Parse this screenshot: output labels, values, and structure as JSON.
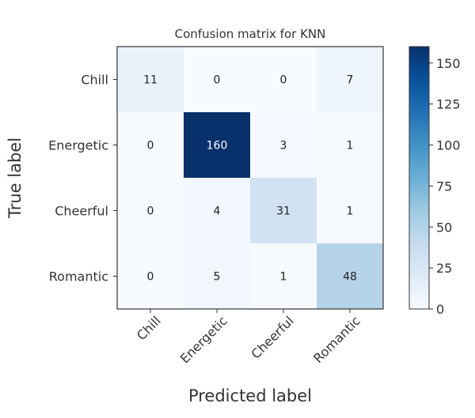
{
  "chart_data": {
    "type": "heatmap",
    "title": "Confusion matrix for KNN",
    "xlabel": "Predicted label",
    "ylabel": "True label",
    "x_categories": [
      "Chill",
      "Energetic",
      "Cheerful",
      "Romantic"
    ],
    "y_categories": [
      "Chill",
      "Energetic",
      "Cheerful",
      "Romantic"
    ],
    "values": [
      [
        11,
        0,
        0,
        7
      ],
      [
        0,
        160,
        3,
        1
      ],
      [
        0,
        4,
        31,
        1
      ],
      [
        0,
        5,
        1,
        48
      ]
    ],
    "colorbar": {
      "range": [
        0,
        160
      ],
      "ticks": [
        0,
        25,
        50,
        75,
        100,
        125,
        150
      ],
      "colormap": "Blues"
    },
    "grid": false
  }
}
